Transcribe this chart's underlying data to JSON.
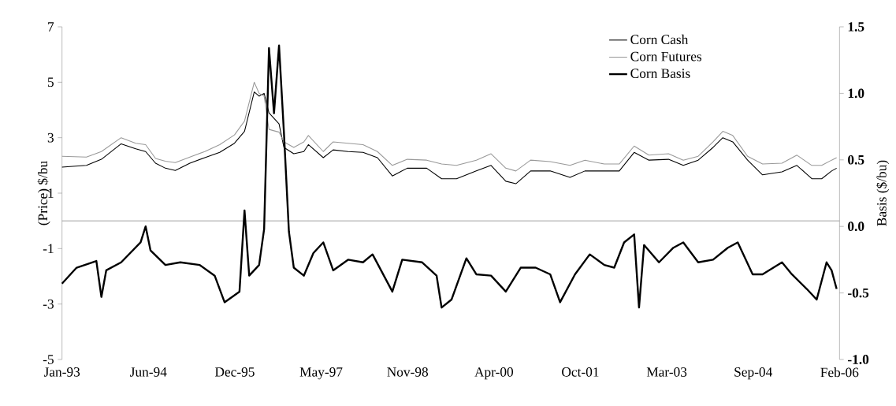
{
  "chart_data": {
    "type": "line",
    "ylabel": "(Price) $/bu",
    "y2label": "Basis ($/bu)",
    "xlim": [
      "1993-01-01",
      "2006-02-19"
    ],
    "xticks": [
      {
        "value": "1993-01-01",
        "label": "Jan-93"
      },
      {
        "value": "1994-06-18",
        "label": "Jun-94"
      },
      {
        "value": "1995-12-03",
        "label": "Dec-95"
      },
      {
        "value": "1997-05-19",
        "label": "May-97"
      },
      {
        "value": "1998-11-03",
        "label": "Nov-98"
      },
      {
        "value": "2000-04-19",
        "label": "Apr-00"
      },
      {
        "value": "2001-10-04",
        "label": "Oct-01"
      },
      {
        "value": "2003-03-21",
        "label": "Mar-03"
      },
      {
        "value": "2004-09-04",
        "label": "Sep-04"
      },
      {
        "value": "2006-02-19",
        "label": "Feb-06"
      }
    ],
    "ylim": [
      -5,
      7
    ],
    "yticks": [
      -5,
      -3,
      -1,
      1,
      3,
      5,
      7
    ],
    "y2lim": [
      -1.0,
      1.5
    ],
    "y2ticks": [
      {
        "value": -1.0,
        "label": "-1.0"
      },
      {
        "value": -0.5,
        "label": "-0.5"
      },
      {
        "value": 0.0,
        "label": "0.0"
      },
      {
        "value": 0.5,
        "label": "0.5"
      },
      {
        "value": 1.0,
        "label": "1.0"
      },
      {
        "value": 1.5,
        "label": "1.5"
      }
    ],
    "legend": "top right",
    "grid": false,
    "marker": "none",
    "ref_lines": [
      {
        "axis": "y",
        "value": 0,
        "color": "#888888"
      }
    ],
    "series": [
      {
        "name": "Corn Cash",
        "color": "#000000",
        "x": [
          "1993-01",
          "1993-06",
          "1993-09",
          "1994-01",
          "1994-04",
          "1994-06",
          "1994-08",
          "1994-10",
          "1994-12",
          "1995-03",
          "1995-06",
          "1995-09",
          "1995-12",
          "1996-02",
          "1996-04",
          "1996-05",
          "1996-06",
          "1996-07",
          "1996-09",
          "1996-10",
          "1996-12",
          "1997-02",
          "1997-03",
          "1997-06",
          "1997-08",
          "1997-11",
          "1998-02",
          "1998-05",
          "1998-08",
          "1998-11",
          "1999-03",
          "1999-06",
          "1999-09",
          "2000-01",
          "2000-04",
          "2000-07",
          "2000-09",
          "2000-12",
          "2001-04",
          "2001-08",
          "2001-11",
          "2002-03",
          "2002-06",
          "2002-09",
          "2002-12",
          "2003-04",
          "2003-07",
          "2003-10",
          "2004-01",
          "2004-03",
          "2004-05",
          "2004-08",
          "2004-11",
          "2005-03",
          "2005-06",
          "2005-09",
          "2005-11",
          "2006-01",
          "2006-02"
        ],
        "values": [
          1.94,
          2.0,
          2.22,
          2.78,
          2.6,
          2.5,
          2.08,
          1.9,
          1.82,
          2.08,
          2.28,
          2.47,
          2.8,
          3.23,
          4.65,
          4.5,
          4.6,
          3.9,
          3.5,
          2.65,
          2.42,
          2.5,
          2.75,
          2.28,
          2.56,
          2.5,
          2.47,
          2.28,
          1.62,
          1.9,
          1.9,
          1.52,
          1.52,
          1.8,
          2.0,
          1.43,
          1.34,
          1.8,
          1.8,
          1.57,
          1.8,
          1.8,
          1.8,
          2.47,
          2.19,
          2.22,
          2.0,
          2.19,
          2.65,
          3.0,
          2.85,
          2.19,
          1.66,
          1.77,
          2.0,
          1.52,
          1.52,
          1.8,
          1.9
        ],
        "line_style": "solid"
      },
      {
        "name": "Corn Futures",
        "color": "#999999",
        "x": [
          "1993-01",
          "1993-06",
          "1993-09",
          "1994-01",
          "1994-04",
          "1994-06",
          "1994-08",
          "1994-10",
          "1994-12",
          "1995-03",
          "1995-06",
          "1995-09",
          "1995-12",
          "1996-02",
          "1996-04",
          "1996-05",
          "1996-06",
          "1996-07",
          "1996-09",
          "1996-10",
          "1996-12",
          "1997-02",
          "1997-03",
          "1997-06",
          "1997-08",
          "1997-11",
          "1998-02",
          "1998-05",
          "1998-08",
          "1998-11",
          "1999-03",
          "1999-06",
          "1999-09",
          "2000-01",
          "2000-04",
          "2000-07",
          "2000-09",
          "2000-12",
          "2001-04",
          "2001-08",
          "2001-11",
          "2002-03",
          "2002-06",
          "2002-09",
          "2002-12",
          "2003-04",
          "2003-07",
          "2003-10",
          "2004-01",
          "2004-03",
          "2004-05",
          "2004-08",
          "2004-11",
          "2005-03",
          "2005-06",
          "2005-09",
          "2005-11",
          "2006-01",
          "2006-02"
        ],
        "values": [
          2.33,
          2.3,
          2.5,
          3.0,
          2.8,
          2.75,
          2.25,
          2.15,
          2.1,
          2.3,
          2.5,
          2.75,
          3.1,
          3.6,
          5.0,
          4.6,
          4.5,
          3.3,
          3.2,
          2.85,
          2.65,
          2.85,
          3.08,
          2.5,
          2.85,
          2.8,
          2.75,
          2.5,
          2.0,
          2.22,
          2.19,
          2.05,
          2.0,
          2.19,
          2.42,
          1.9,
          1.8,
          2.19,
          2.14,
          2.0,
          2.19,
          2.05,
          2.05,
          2.7,
          2.37,
          2.42,
          2.19,
          2.33,
          2.85,
          3.23,
          3.08,
          2.33,
          2.05,
          2.08,
          2.37,
          2.0,
          2.0,
          2.19,
          2.28
        ],
        "line_style": "solid"
      },
      {
        "name": "Corn Basis",
        "color": "#000000",
        "axis": "y2",
        "x": [
          "1993-01",
          "1993-04",
          "1993-08",
          "1993-09",
          "1993-10",
          "1994-01",
          "1994-05",
          "1994-06",
          "1994-07",
          "1994-10",
          "1995-01",
          "1995-05",
          "1995-08",
          "1995-10",
          "1996-01",
          "1996-02",
          "1996-03",
          "1996-05",
          "1996-06",
          "1996-07",
          "1996-08",
          "1996-09",
          "1996-10",
          "1996-11",
          "1996-12",
          "1997-02",
          "1997-04",
          "1997-06",
          "1997-08",
          "1997-11",
          "1998-02",
          "1998-04",
          "1998-08",
          "1998-10",
          "1999-02",
          "1999-05",
          "1999-06",
          "1999-08",
          "1999-11",
          "2000-01",
          "2000-04",
          "2000-07",
          "2000-10",
          "2001-01",
          "2001-04",
          "2001-06",
          "2001-09",
          "2001-12",
          "2002-03",
          "2002-05",
          "2002-07",
          "2002-09",
          "2002-10",
          "2002-11",
          "2003-02",
          "2003-05",
          "2003-07",
          "2003-10",
          "2004-01",
          "2004-04",
          "2004-06",
          "2004-09",
          "2004-11",
          "2005-03",
          "2005-05",
          "2005-08",
          "2005-10",
          "2005-12",
          "2006-01",
          "2006-02"
        ],
        "values": [
          -0.43,
          -0.31,
          -0.26,
          -0.53,
          -0.33,
          -0.27,
          -0.12,
          0.0,
          -0.18,
          -0.29,
          -0.27,
          -0.29,
          -0.37,
          -0.57,
          -0.49,
          0.12,
          -0.37,
          -0.29,
          -0.02,
          1.34,
          0.85,
          1.36,
          0.71,
          -0.04,
          -0.31,
          -0.37,
          -0.2,
          -0.12,
          -0.33,
          -0.25,
          -0.27,
          -0.21,
          -0.49,
          -0.25,
          -0.27,
          -0.37,
          -0.61,
          -0.55,
          -0.24,
          -0.36,
          -0.37,
          -0.49,
          -0.31,
          -0.31,
          -0.36,
          -0.57,
          -0.36,
          -0.21,
          -0.29,
          -0.31,
          -0.12,
          -0.06,
          -0.61,
          -0.14,
          -0.27,
          -0.16,
          -0.12,
          -0.27,
          -0.25,
          -0.16,
          -0.12,
          -0.36,
          -0.36,
          -0.27,
          -0.36,
          -0.47,
          -0.55,
          -0.27,
          -0.33,
          -0.47
        ],
        "line_style": "solid"
      }
    ]
  }
}
